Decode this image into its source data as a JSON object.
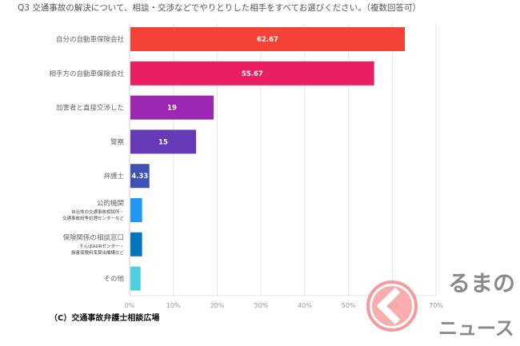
{
  "chart_data": {
    "type": "bar",
    "orientation": "horizontal",
    "title": "Q3 交通事故の解決について、相談・交渉などでやりとりした相手をすべてお選びください。（複数回答可）",
    "categories": [
      {
        "label": "自分の自動車保険会社",
        "sub": []
      },
      {
        "label": "相手方の自動車保険会社",
        "sub": []
      },
      {
        "label": "加害者と直接交渉した",
        "sub": []
      },
      {
        "label": "警察",
        "sub": []
      },
      {
        "label": "弁護士",
        "sub": []
      },
      {
        "label": "公的機関",
        "sub": [
          "自治体の交通事故相談所・",
          "交通事故紛争処理センターなど"
        ]
      },
      {
        "label": "保険関係の相談窓口",
        "sub": [
          "そんぽADRセンター・",
          "損害保険料率算出機構など"
        ]
      },
      {
        "label": "その他",
        "sub": []
      }
    ],
    "values": [
      62.67,
      55.67,
      19,
      15,
      4.33,
      2.67,
      2.67,
      2.33
    ],
    "value_labels": [
      "62.67",
      "55.67",
      "19",
      "15",
      "4.33",
      "",
      "",
      ""
    ],
    "colors": [
      "#f44336",
      "#e91e63",
      "#9c27b0",
      "#673ab7",
      "#3f51b5",
      "#2196f3",
      "#0277bd",
      "#4dd0e1"
    ],
    "xlim": [
      0,
      70
    ],
    "xticks": [
      "0%",
      "10%",
      "20%",
      "30%",
      "40%",
      "50%",
      "60%",
      "70%"
    ],
    "grid": true,
    "xlabel": "",
    "ylabel": ""
  },
  "credit": "（C）交通事故弁護士相談広場",
  "watermark": {
    "line1": "るまの",
    "line2": "ニュース"
  }
}
